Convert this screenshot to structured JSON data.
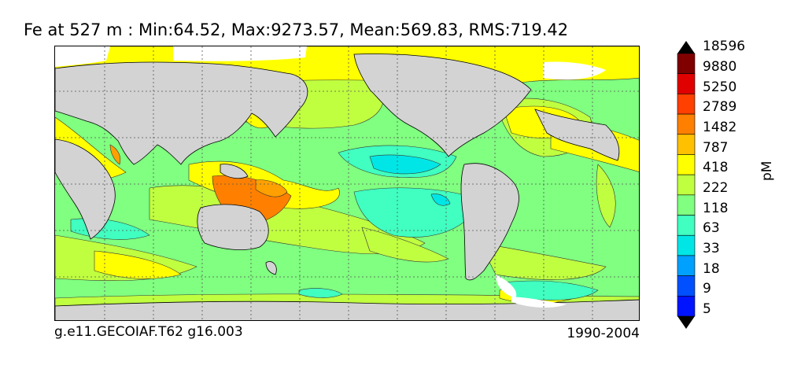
{
  "title": "Fe at 527 m : Min:64.52, Max:9273.57, Mean:569.83, RMS:719.42",
  "caption_left": "g.e11.GECOIAF.T62 g16.003",
  "caption_right": "1990-2004",
  "colorbar": {
    "units": "pM",
    "levels": [
      "5",
      "9",
      "18",
      "33",
      "63",
      "118",
      "222",
      "418",
      "787",
      "1482",
      "2789",
      "5250",
      "9880",
      "18596"
    ],
    "colors": [
      "#000080",
      "#0000c8",
      "#0014ff",
      "#0050ff",
      "#00a0ff",
      "#00e6e6",
      "#40ffc0",
      "#80ff80",
      "#c0ff40",
      "#ffff00",
      "#ffc000",
      "#ff8000",
      "#ff4000",
      "#e00000",
      "#800000"
    ]
  },
  "map_colors": {
    "land": "#d3d3d3",
    "no_data": "#ffffff",
    "green": "#80ff80",
    "lime": "#c0ff40",
    "yellow": "#ffff00",
    "orange": "#ffa000",
    "dark_orange": "#ff8000",
    "turquoise": "#40ffc0",
    "cyan": "#00e6e6"
  }
}
